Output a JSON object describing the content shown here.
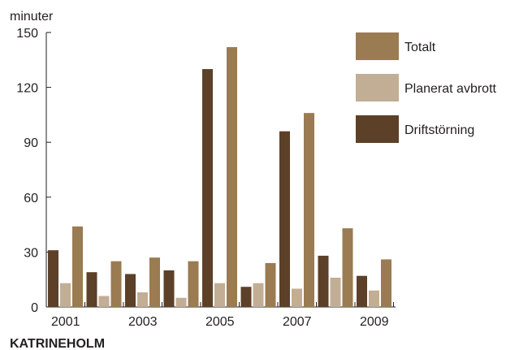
{
  "chart_data": {
    "type": "bar",
    "unit_label": "minuter",
    "caption": "KATRINEHOLM",
    "categories": [
      "2001",
      "2002",
      "2003",
      "2004",
      "2005",
      "2006",
      "2007",
      "2008",
      "2009"
    ],
    "x_tick_labels": [
      "2001",
      "",
      "2003",
      "",
      "2005",
      "",
      "2007",
      "",
      "2009"
    ],
    "ylim": [
      0,
      150
    ],
    "yticks": [
      0,
      30,
      60,
      90,
      120,
      150
    ],
    "grid": false,
    "legend_position": "right",
    "series": [
      {
        "name": "Driftstörning",
        "color": "#5c4028",
        "values": [
          31,
          19,
          18,
          20,
          130,
          11,
          96,
          28,
          17
        ]
      },
      {
        "name": "Planerat avbrott",
        "color": "#c2ae95",
        "values": [
          13,
          6,
          8,
          5,
          13,
          13,
          10,
          16,
          9
        ]
      },
      {
        "name": "Totalt",
        "color": "#9b7b52",
        "values": [
          44,
          25,
          27,
          25,
          142,
          24,
          106,
          43,
          26
        ]
      }
    ],
    "legend_order": [
      "Totalt",
      "Planerat avbrott",
      "Driftstörning"
    ]
  }
}
